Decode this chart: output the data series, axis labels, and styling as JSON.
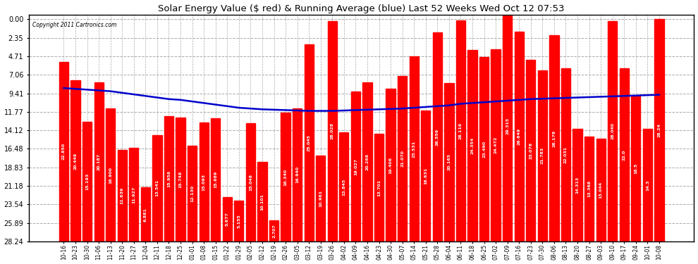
{
  "title": "Solar Energy Value ($ red) & Running Average (blue) Last 52 Weeks Wed Oct 12 07:53",
  "copyright": "Copyright 2011 Cartronics.com",
  "bar_color": "#ff0000",
  "line_color": "#0000cc",
  "background_color": "#ffffff",
  "grid_color": "#aaaaaa",
  "ylabel_right": [
    "28.24",
    "25.89",
    "23.54",
    "21.18",
    "18.83",
    "16.48",
    "14.12",
    "11.77",
    "9.41",
    "7.06",
    "4.71",
    "2.35",
    "0.00"
  ],
  "yticks": [
    0.0,
    2.35,
    4.71,
    7.06,
    9.41,
    11.77,
    14.12,
    16.48,
    18.83,
    21.18,
    23.54,
    25.89,
    28.24
  ],
  "categories": [
    "10-16",
    "10-23",
    "10-30",
    "11-06",
    "11-13",
    "11-20",
    "11-27",
    "12-04",
    "12-11",
    "12-18",
    "12-25",
    "01-01",
    "01-08",
    "01-15",
    "01-22",
    "01-29",
    "02-05",
    "02-12",
    "02-19",
    "02-26",
    "03-05",
    "03-12",
    "03-19",
    "03-26",
    "04-02",
    "04-09",
    "04-16",
    "04-23",
    "04-30",
    "05-07",
    "05-14",
    "05-21",
    "05-28",
    "06-04",
    "06-11",
    "06-18",
    "06-25",
    "07-02",
    "07-09",
    "07-16",
    "07-23",
    "07-30",
    "08-06",
    "08-13",
    "08-20",
    "08-27",
    "09-03",
    "09-10",
    "09-17",
    "09-24",
    "10-01",
    "10-08"
  ],
  "bar_values": [
    22.85,
    20.449,
    15.193,
    20.187,
    16.9,
    11.639,
    11.927,
    6.881,
    13.541,
    15.958,
    15.748,
    12.13,
    15.093,
    15.689,
    5.677,
    5.155,
    15.048,
    10.101,
    2.707,
    16.34,
    16.94,
    25.045,
    10.961,
    28.028,
    13.845,
    19.027,
    20.268,
    13.701,
    19.406,
    21.07,
    23.531,
    16.631,
    26.556,
    20.165,
    28.116,
    24.354,
    23.49,
    24.472,
    29.315,
    26.649,
    23.078,
    21.783,
    26.178,
    22.031,
    14.313,
    13.368,
    13.044,
    28.04,
    22.0,
    18.5,
    14.3,
    28.24
  ],
  "bar_labels": [
    "22.850",
    "20.449",
    "15.193",
    "20.187",
    "16.900",
    "11.639",
    "11.927",
    "6.881",
    "13.541",
    "15.958",
    "15.748",
    "12.130",
    "15.093",
    "15.689",
    "5.677",
    "5.155",
    "15.048",
    "10.101",
    "2.707",
    "16.340",
    "16.940",
    "25.045",
    "10.961",
    "28.028",
    "13.845",
    "19.027",
    "20.268",
    "13.701",
    "19.406",
    "21.070",
    "23.531",
    "16.631",
    "26.556",
    "20.165",
    "28.116",
    "24.354",
    "23.490",
    "24.472",
    "29.315",
    "26.649",
    "23.078",
    "21.783",
    "26.178",
    "22.031",
    "14.313",
    "13.368",
    "13.044",
    "28.040",
    "22.0",
    "18.5",
    "14.3",
    "28.24"
  ],
  "running_avg": [
    19.5,
    19.4,
    19.3,
    19.2,
    19.1,
    18.9,
    18.7,
    18.5,
    18.3,
    18.1,
    18.0,
    17.8,
    17.6,
    17.4,
    17.2,
    17.0,
    16.9,
    16.8,
    16.75,
    16.7,
    16.65,
    16.6,
    16.6,
    16.6,
    16.65,
    16.7,
    16.75,
    16.8,
    16.85,
    16.9,
    17.0,
    17.1,
    17.2,
    17.3,
    17.5,
    17.6,
    17.7,
    17.8,
    17.9,
    18.0,
    18.1,
    18.15,
    18.2,
    18.25,
    18.3,
    18.35,
    18.4,
    18.45,
    18.5,
    18.55,
    18.6,
    18.65
  ],
  "figsize": [
    9.9,
    3.75
  ],
  "dpi": 100
}
